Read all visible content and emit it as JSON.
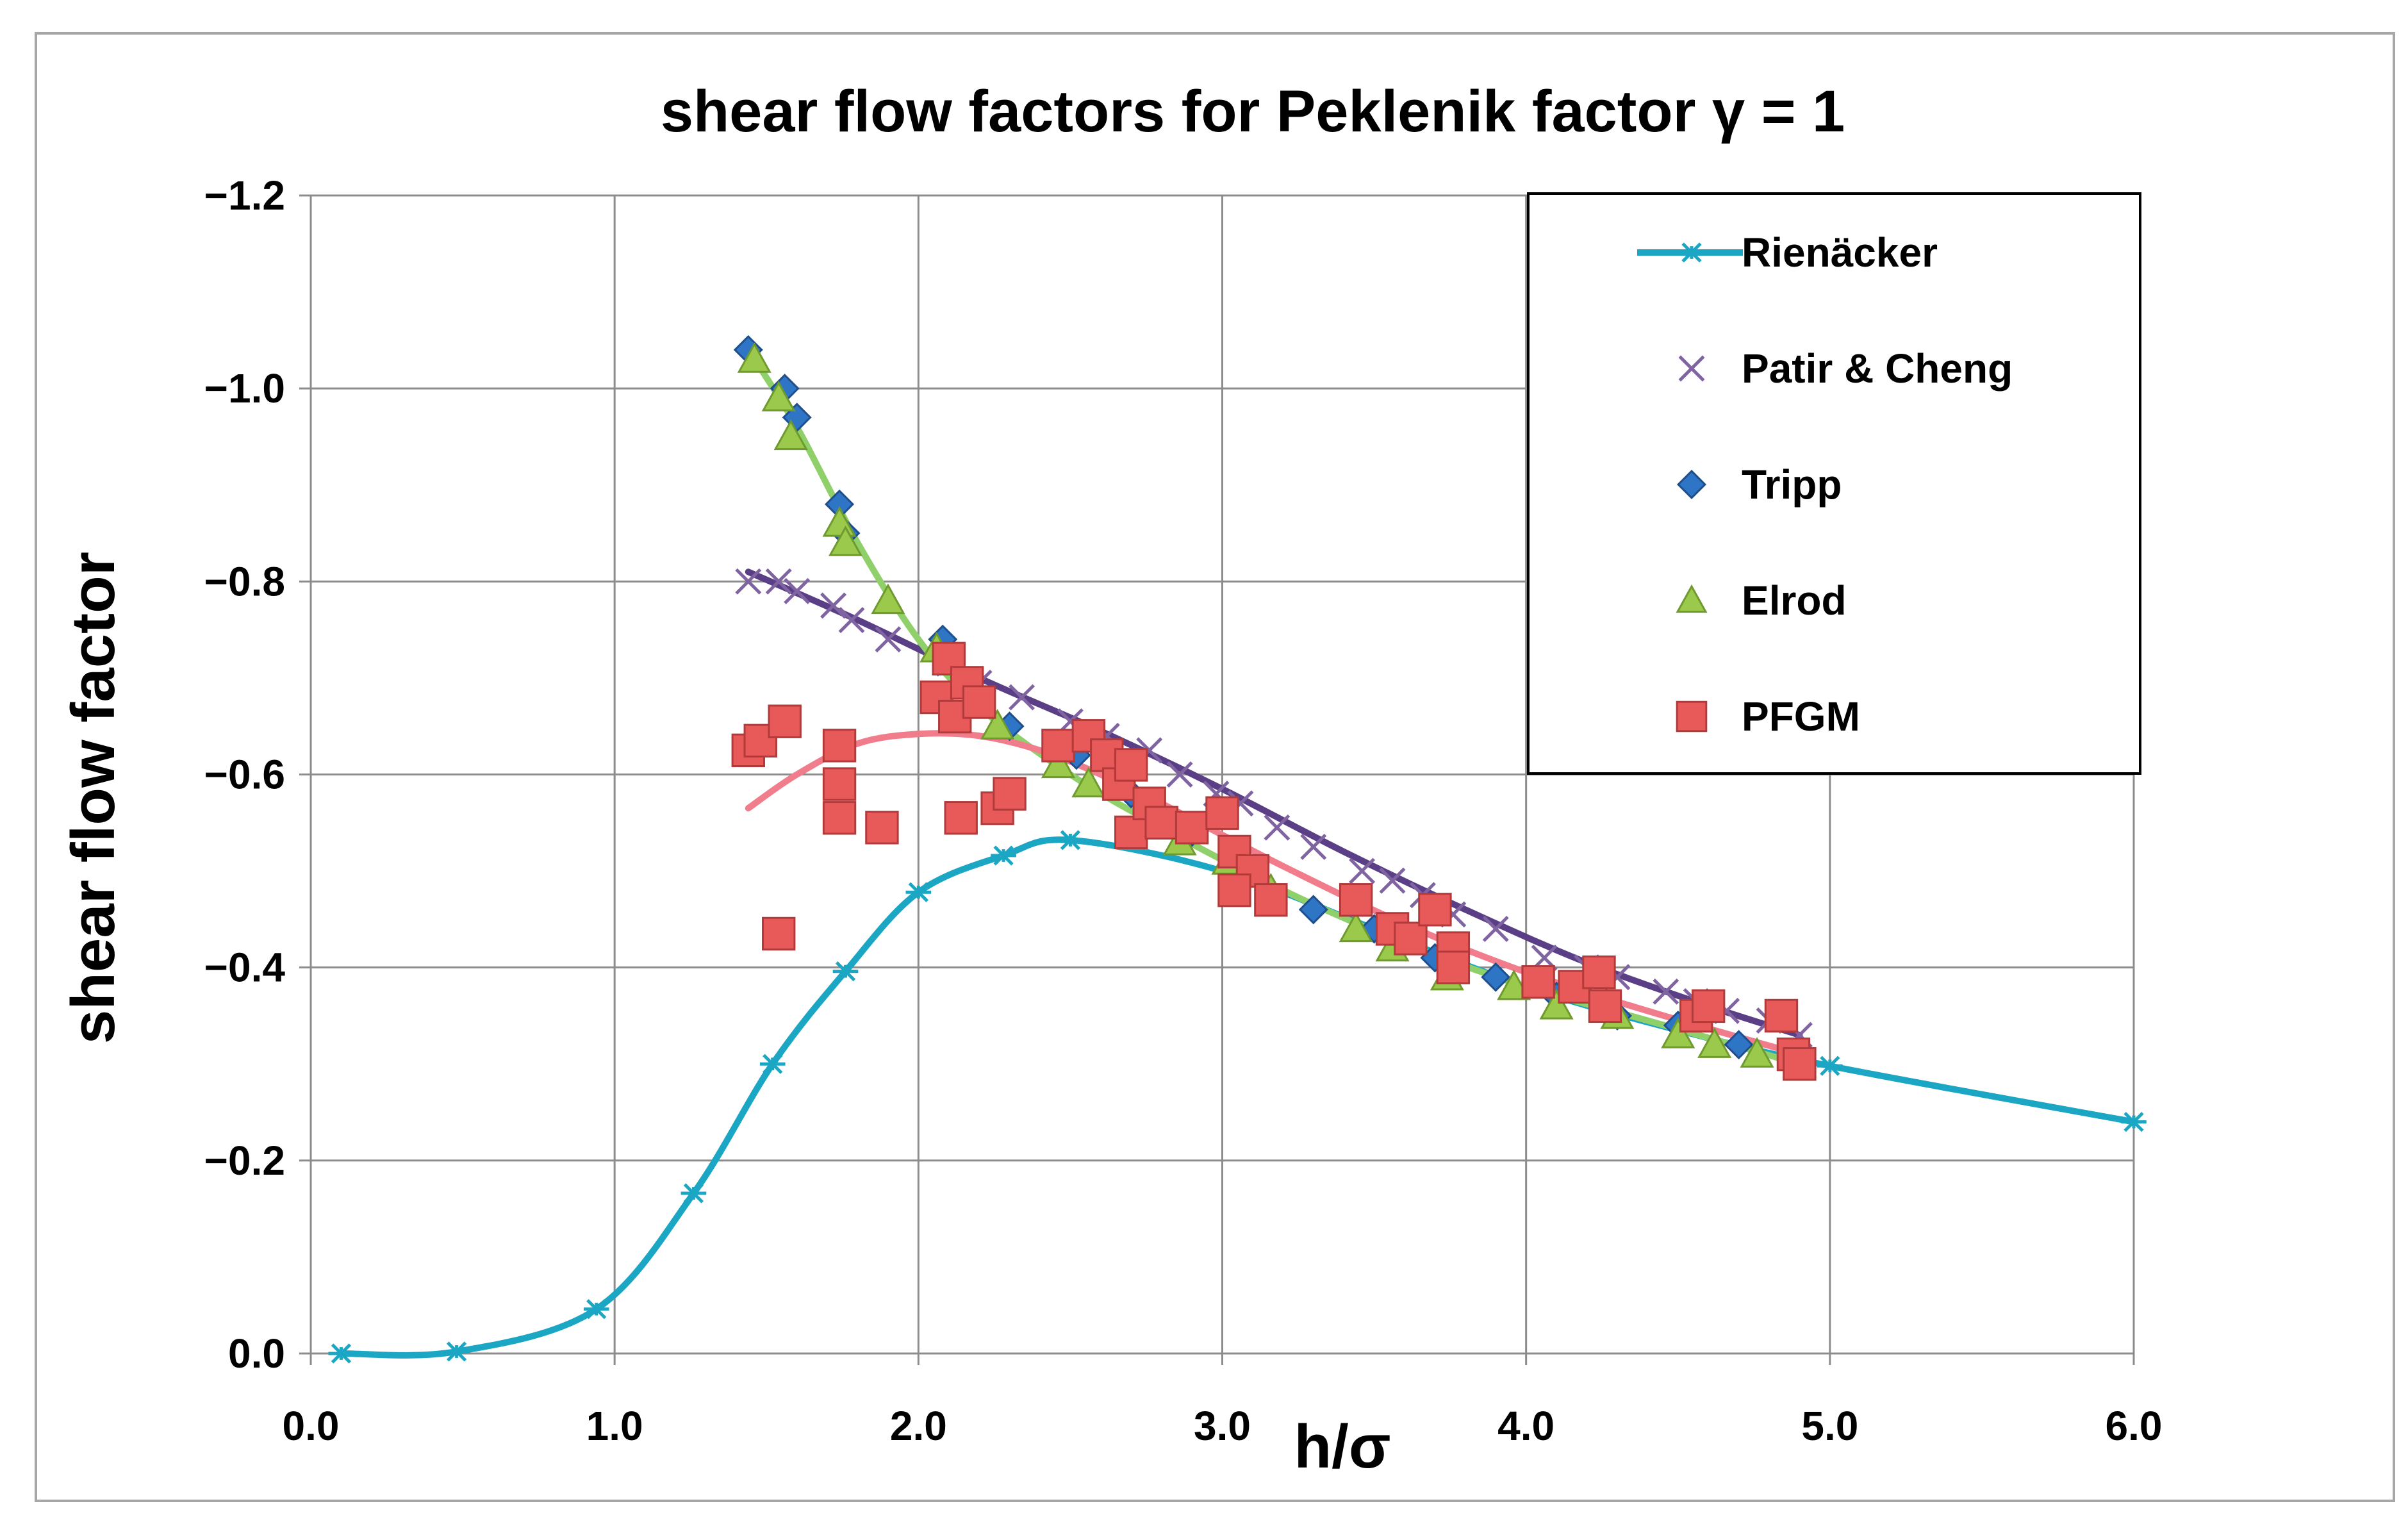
{
  "chart_data": {
    "type": "scatter",
    "title": "shear flow factors for Peklenik factor γ = 1",
    "xlabel": "h/σ",
    "ylabel": "shear flow factor",
    "xlim": [
      0,
      6
    ],
    "ylim": [
      0.0,
      -1.2
    ],
    "y_axis_inverted": true,
    "grid": true,
    "legend_position": "top-right",
    "x_ticks": [
      "0.0",
      "1.0",
      "2.0",
      "3.0",
      "4.0",
      "5.0",
      "6.0"
    ],
    "y_ticks": [
      "0.0",
      "−0.2",
      "−0.4",
      "−0.6",
      "−0.8",
      "−1.0",
      "−1.2"
    ],
    "series": [
      {
        "name": "Rienäcker",
        "marker": "asterisk",
        "line": true,
        "color": "#1BA6C4",
        "points": [
          [
            0.1,
            0.0
          ],
          [
            0.48,
            -0.002
          ],
          [
            0.94,
            -0.046
          ],
          [
            1.26,
            -0.166
          ],
          [
            1.52,
            -0.3
          ],
          [
            1.76,
            -0.396
          ],
          [
            2.0,
            -0.478
          ],
          [
            2.28,
            -0.516
          ],
          [
            2.5,
            -0.532
          ],
          [
            5.0,
            -0.298
          ],
          [
            6.0,
            -0.24
          ]
        ]
      },
      {
        "name": "Patir & Cheng",
        "marker": "x",
        "line": false,
        "color": "#8064A2",
        "points": [
          [
            1.44,
            -0.8
          ],
          [
            1.54,
            -0.8
          ],
          [
            1.6,
            -0.79
          ],
          [
            1.72,
            -0.775
          ],
          [
            1.78,
            -0.76
          ],
          [
            1.9,
            -0.74
          ],
          [
            2.1,
            -0.715
          ],
          [
            2.2,
            -0.695
          ],
          [
            2.34,
            -0.68
          ],
          [
            2.5,
            -0.655
          ],
          [
            2.62,
            -0.64
          ],
          [
            2.76,
            -0.625
          ],
          [
            2.86,
            -0.6
          ],
          [
            2.98,
            -0.58
          ],
          [
            3.06,
            -0.57
          ],
          [
            3.18,
            -0.545
          ],
          [
            3.3,
            -0.525
          ],
          [
            3.46,
            -0.5
          ],
          [
            3.56,
            -0.49
          ],
          [
            3.66,
            -0.475
          ],
          [
            3.76,
            -0.455
          ],
          [
            3.9,
            -0.44
          ],
          [
            4.06,
            -0.41
          ],
          [
            4.2,
            -0.4
          ],
          [
            4.3,
            -0.39
          ],
          [
            4.46,
            -0.375
          ],
          [
            4.56,
            -0.365
          ],
          [
            4.66,
            -0.355
          ],
          [
            4.8,
            -0.345
          ],
          [
            4.9,
            -0.33
          ]
        ]
      },
      {
        "name": "Tripp",
        "marker": "diamond",
        "line": false,
        "color": "#2E75C6",
        "points": [
          [
            1.44,
            -1.04
          ],
          [
            1.56,
            -1.0
          ],
          [
            1.6,
            -0.97
          ],
          [
            1.74,
            -0.88
          ],
          [
            1.76,
            -0.85
          ],
          [
            2.08,
            -0.74
          ],
          [
            2.2,
            -0.68
          ],
          [
            2.3,
            -0.65
          ],
          [
            2.52,
            -0.62
          ],
          [
            2.7,
            -0.58
          ],
          [
            2.9,
            -0.54
          ],
          [
            3.1,
            -0.5
          ],
          [
            3.3,
            -0.46
          ],
          [
            3.5,
            -0.44
          ],
          [
            3.7,
            -0.41
          ],
          [
            3.9,
            -0.39
          ],
          [
            4.1,
            -0.37
          ],
          [
            4.3,
            -0.35
          ],
          [
            4.5,
            -0.34
          ],
          [
            4.7,
            -0.32
          ],
          [
            4.88,
            -0.3
          ]
        ]
      },
      {
        "name": "Elrod",
        "marker": "triangle",
        "line": false,
        "color": "#9BC94B",
        "points": [
          [
            1.46,
            -1.03
          ],
          [
            1.54,
            -0.99
          ],
          [
            1.58,
            -0.95
          ],
          [
            1.74,
            -0.86
          ],
          [
            1.76,
            -0.84
          ],
          [
            1.9,
            -0.78
          ],
          [
            2.06,
            -0.73
          ],
          [
            2.26,
            -0.65
          ],
          [
            2.46,
            -0.61
          ],
          [
            2.56,
            -0.59
          ],
          [
            2.76,
            -0.56
          ],
          [
            2.86,
            -0.53
          ],
          [
            3.02,
            -0.51
          ],
          [
            3.16,
            -0.48
          ],
          [
            3.44,
            -0.44
          ],
          [
            3.56,
            -0.42
          ],
          [
            3.74,
            -0.39
          ],
          [
            3.96,
            -0.38
          ],
          [
            4.1,
            -0.36
          ],
          [
            4.3,
            -0.35
          ],
          [
            4.5,
            -0.33
          ],
          [
            4.62,
            -0.32
          ],
          [
            4.76,
            -0.31
          ],
          [
            4.9,
            -0.3
          ]
        ]
      },
      {
        "name": "PFGM",
        "marker": "square",
        "line": false,
        "color": "#E85A5A",
        "points": [
          [
            1.44,
            -0.625
          ],
          [
            1.48,
            -0.635
          ],
          [
            1.56,
            -0.655
          ],
          [
            1.54,
            -0.435
          ],
          [
            1.74,
            -0.63
          ],
          [
            1.74,
            -0.59
          ],
          [
            1.74,
            -0.555
          ],
          [
            1.88,
            -0.545
          ],
          [
            2.06,
            -0.68
          ],
          [
            2.1,
            -0.72
          ],
          [
            2.12,
            -0.66
          ],
          [
            2.16,
            -0.695
          ],
          [
            2.2,
            -0.675
          ],
          [
            2.14,
            -0.555
          ],
          [
            2.26,
            -0.565
          ],
          [
            2.3,
            -0.58
          ],
          [
            2.46,
            -0.63
          ],
          [
            2.56,
            -0.64
          ],
          [
            2.62,
            -0.62
          ],
          [
            2.66,
            -0.59
          ],
          [
            2.7,
            -0.61
          ],
          [
            2.7,
            -0.54
          ],
          [
            2.76,
            -0.57
          ],
          [
            2.8,
            -0.55
          ],
          [
            2.9,
            -0.545
          ],
          [
            3.0,
            -0.56
          ],
          [
            3.04,
            -0.52
          ],
          [
            3.1,
            -0.5
          ],
          [
            3.04,
            -0.48
          ],
          [
            3.16,
            -0.47
          ],
          [
            3.44,
            -0.47
          ],
          [
            3.56,
            -0.44
          ],
          [
            3.62,
            -0.43
          ],
          [
            3.7,
            -0.46
          ],
          [
            3.76,
            -0.42
          ],
          [
            3.76,
            -0.4
          ],
          [
            4.04,
            -0.385
          ],
          [
            4.16,
            -0.38
          ],
          [
            4.24,
            -0.395
          ],
          [
            4.26,
            -0.36
          ],
          [
            4.56,
            -0.35
          ],
          [
            4.6,
            -0.36
          ],
          [
            4.84,
            -0.35
          ],
          [
            4.88,
            -0.31
          ],
          [
            4.9,
            -0.3
          ]
        ]
      }
    ],
    "trend_lines": [
      {
        "series": "Rienäcker",
        "color": "#1BA6C4",
        "points": [
          [
            0.1,
            0.0
          ],
          [
            0.48,
            -0.002
          ],
          [
            0.94,
            -0.046
          ],
          [
            1.26,
            -0.166
          ],
          [
            1.52,
            -0.3
          ],
          [
            1.76,
            -0.396
          ],
          [
            2.0,
            -0.478
          ],
          [
            2.28,
            -0.516
          ],
          [
            2.5,
            -0.532
          ],
          [
            3.0,
            -0.5
          ],
          [
            3.5,
            -0.44
          ],
          [
            4.0,
            -0.38
          ],
          [
            4.5,
            -0.335
          ],
          [
            5.0,
            -0.298
          ],
          [
            6.0,
            -0.24
          ]
        ]
      },
      {
        "series": "Patir & Cheng",
        "color": "#5B3F86",
        "points": [
          [
            1.44,
            -0.81
          ],
          [
            1.8,
            -0.76
          ],
          [
            2.2,
            -0.7
          ],
          [
            2.6,
            -0.645
          ],
          [
            3.0,
            -0.585
          ],
          [
            3.4,
            -0.52
          ],
          [
            3.8,
            -0.46
          ],
          [
            4.2,
            -0.405
          ],
          [
            4.6,
            -0.36
          ],
          [
            4.9,
            -0.33
          ]
        ]
      },
      {
        "series": "Elrod",
        "color": "#8FD06A",
        "points": [
          [
            1.44,
            -1.04
          ],
          [
            1.6,
            -0.96
          ],
          [
            1.8,
            -0.84
          ],
          [
            2.0,
            -0.74
          ],
          [
            2.2,
            -0.67
          ],
          [
            2.5,
            -0.6
          ],
          [
            2.8,
            -0.545
          ],
          [
            3.2,
            -0.48
          ],
          [
            3.6,
            -0.425
          ],
          [
            4.0,
            -0.38
          ],
          [
            4.4,
            -0.345
          ],
          [
            4.9,
            -0.3
          ]
        ]
      },
      {
        "series": "PFGM",
        "color": "#F07C8C",
        "points": [
          [
            1.44,
            -0.565
          ],
          [
            1.6,
            -0.6
          ],
          [
            1.8,
            -0.632
          ],
          [
            2.0,
            -0.642
          ],
          [
            2.2,
            -0.64
          ],
          [
            2.4,
            -0.625
          ],
          [
            2.6,
            -0.6
          ],
          [
            2.8,
            -0.57
          ],
          [
            3.2,
            -0.505
          ],
          [
            3.6,
            -0.445
          ],
          [
            4.0,
            -0.395
          ],
          [
            4.4,
            -0.355
          ],
          [
            4.9,
            -0.31
          ]
        ]
      }
    ]
  }
}
